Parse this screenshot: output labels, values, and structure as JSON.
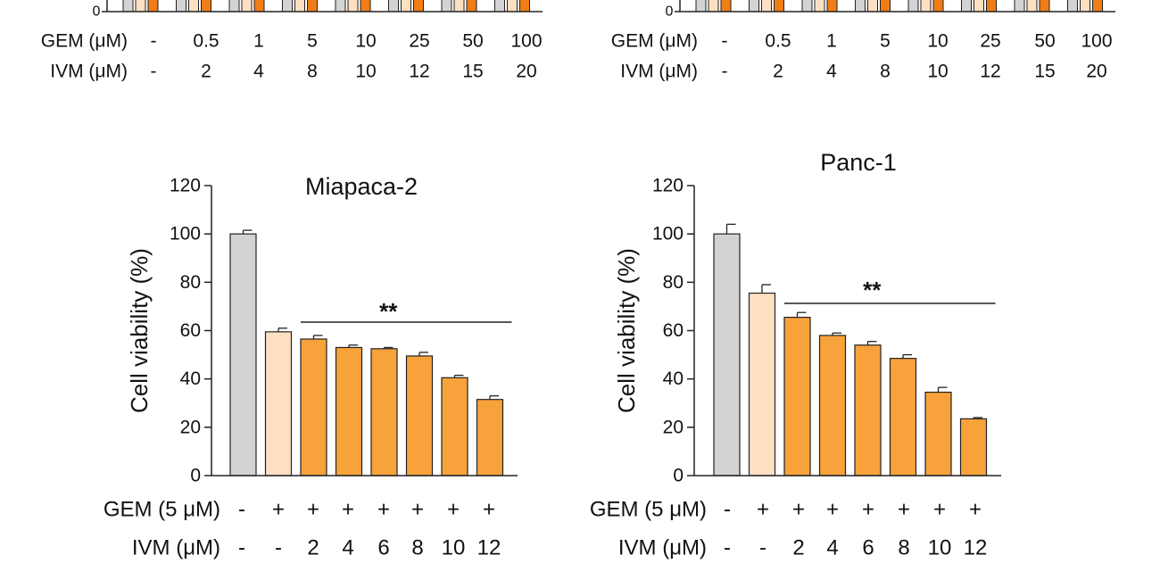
{
  "colors": {
    "control": "#d3d3d3",
    "gem_only": "#fde0c2",
    "combo": "#f7a23b",
    "combo_strong": "#f07d15",
    "axis": "#222222"
  },
  "top_panels": [
    {
      "axis_zero_label": "0",
      "table": [
        {
          "label": "GEM (μM)",
          "values": [
            "-",
            "0.5",
            "1",
            "5",
            "10",
            "25",
            "50",
            "100"
          ]
        },
        {
          "label": "IVM (μM)",
          "values": [
            "-",
            "2",
            "4",
            "8",
            "10",
            "12",
            "15",
            "20"
          ]
        }
      ]
    },
    {
      "axis_zero_label": "0",
      "table": [
        {
          "label": "GEM (μM)",
          "values": [
            "-",
            "0.5",
            "1",
            "5",
            "10",
            "25",
            "50",
            "100"
          ]
        },
        {
          "label": "IVM (μM)",
          "values": [
            "-",
            "2",
            "4",
            "8",
            "10",
            "12",
            "15",
            "20"
          ]
        }
      ]
    }
  ],
  "chart_data": [
    {
      "type": "bar",
      "title": "Miapaca-2",
      "ylabel": "Cell viability (%)",
      "ylim": [
        0,
        120
      ],
      "yticks": [
        "0",
        "20",
        "40",
        "60",
        "80",
        "100",
        "120"
      ],
      "values": [
        100,
        59.5,
        56.5,
        53,
        52.5,
        49.5,
        40.5,
        31.5
      ],
      "errors": [
        1.5,
        1.5,
        1.5,
        1,
        0.5,
        1.5,
        1,
        1.5
      ],
      "significance": {
        "label": "**",
        "from_bar": 2,
        "to_bar": 7
      },
      "table": [
        {
          "label": "GEM (5 μM)",
          "values": [
            "-",
            "+",
            "+",
            "+",
            "+",
            "+",
            "+",
            "+"
          ]
        },
        {
          "label": "IVM (μM)",
          "values": [
            "-",
            "-",
            "2",
            "4",
            "6",
            "8",
            "10",
            "12"
          ]
        }
      ]
    },
    {
      "type": "bar",
      "title": "Panc-1",
      "ylabel": "Cell viability (%)",
      "ylim": [
        0,
        120
      ],
      "yticks": [
        "0",
        "20",
        "40",
        "60",
        "80",
        "100",
        "120"
      ],
      "values": [
        100,
        75.5,
        65.5,
        58,
        54,
        48.5,
        34.5,
        23.5
      ],
      "errors": [
        4,
        3.5,
        2,
        1,
        1.5,
        1.5,
        2,
        0.5
      ],
      "significance": {
        "label": "**",
        "from_bar": 2,
        "to_bar": 7
      },
      "table": [
        {
          "label": "GEM (5 μM)",
          "values": [
            "-",
            "+",
            "+",
            "+",
            "+",
            "+",
            "+",
            "+"
          ]
        },
        {
          "label": "IVM (μM)",
          "values": [
            "-",
            "-",
            "2",
            "4",
            "6",
            "8",
            "10",
            "12"
          ]
        }
      ]
    }
  ]
}
